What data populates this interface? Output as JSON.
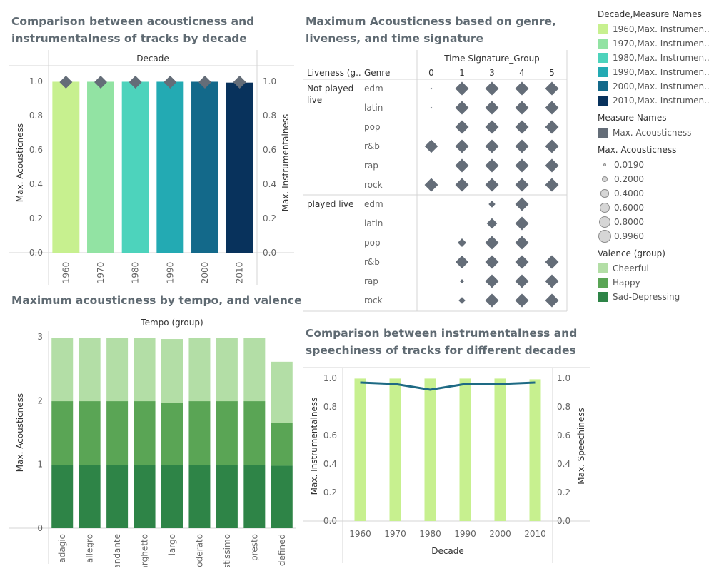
{
  "titles": {
    "chart1_line1": "Comparison between acousticness and",
    "chart1_line2": "instrumentalness of tracks by decade",
    "chart2_line1": "Maximum Acousticness based on genre,",
    "chart2_line2": "liveness, and time signature",
    "chart3": "Maximum acousticness by tempo, and valence",
    "chart4_line1": "Comparison between instrumentalness and",
    "chart4_line2": "speechiness of tracks for different decades"
  },
  "legend": {
    "decade_title": "Decade,Measure Names",
    "decade_items": [
      {
        "label": "1960,Max. Instrumen..",
        "color": "#c7f08f"
      },
      {
        "label": "1970,Max. Instrumen..",
        "color": "#92e3a3"
      },
      {
        "label": "1980,Max. Instrumen..",
        "color": "#4dd3bc"
      },
      {
        "label": "1990,Max. Instrumen..",
        "color": "#23aab3"
      },
      {
        "label": "2000,Max. Instrumen..",
        "color": "#13698a"
      },
      {
        "label": "2010,Max. Instrumen..",
        "color": "#08325c"
      }
    ],
    "measure_title": "Measure Names",
    "measure_items": [
      {
        "label": "Max. Acousticness",
        "color": "#646d78"
      }
    ],
    "size_title": "Max. Acousticness",
    "size_items": [
      "0.0190",
      "0.2000",
      "0.4000",
      "0.6000",
      "0.8000",
      "0.9960"
    ],
    "valence_title": "Valence (group)",
    "valence_items": [
      {
        "label": "Cheerful",
        "color": "#b3dea6"
      },
      {
        "label": "Happy",
        "color": "#5aa555"
      },
      {
        "label": "Sad-Depressing",
        "color": "#2e8447"
      }
    ]
  },
  "chart_data": [
    {
      "type": "bar",
      "title": "Comparison between acousticness and instrumentalness of tracks by decade",
      "header": "Decade",
      "categories": [
        "1960",
        "1970",
        "1980",
        "1990",
        "2000",
        "2010"
      ],
      "colors": [
        "#c7f08f",
        "#92e3a3",
        "#4dd3bc",
        "#23aab3",
        "#13698a",
        "#08325c"
      ],
      "series": [
        {
          "name": "Max. Instrumentalness",
          "values": [
            0.998,
            0.998,
            0.998,
            0.998,
            0.998,
            0.993
          ]
        },
        {
          "name": "Max. Acousticness",
          "mark": "diamond",
          "values": [
            0.996,
            0.996,
            0.996,
            0.996,
            0.996,
            0.996
          ]
        }
      ],
      "ylabel": "Max. Acousticness",
      "y2label": "Max. Instrumentalness",
      "ylim": [
        0,
        1.05
      ],
      "y_ticks": [
        "0.0",
        "0.2",
        "0.4",
        "0.6",
        "0.8",
        "1.0"
      ],
      "marker_color": "#646d78"
    },
    {
      "type": "scatter",
      "title": "Maximum Acousticness based on genre, liveness, and time signature",
      "col_header": "Time Signature_Group",
      "row_header_1": "Liveness (g..",
      "row_header_2": "Genre",
      "columns": [
        "0",
        "1",
        "3",
        "4",
        "5"
      ],
      "groups": [
        {
          "name": "Not played live",
          "name_line1": "Not played",
          "name_line2": "live",
          "genres": [
            "edm",
            "latin",
            "pop",
            "r&b",
            "rap",
            "rock"
          ],
          "values": [
            [
              0.019,
              0.996,
              0.996,
              0.996,
              0.996
            ],
            [
              0.019,
              0.996,
              0.996,
              0.996,
              0.996
            ],
            [
              null,
              0.996,
              0.996,
              0.996,
              0.996
            ],
            [
              0.95,
              0.996,
              0.996,
              0.996,
              0.996
            ],
            [
              null,
              0.996,
              0.996,
              0.996,
              0.996
            ],
            [
              0.99,
              0.996,
              0.996,
              0.996,
              0.996
            ]
          ]
        },
        {
          "name": "played live",
          "genres": [
            "edm",
            "latin",
            "pop",
            "r&b",
            "rap",
            "rock"
          ],
          "values": [
            [
              null,
              null,
              0.25,
              0.99,
              null
            ],
            [
              null,
              null,
              0.6,
              0.99,
              null
            ],
            [
              null,
              0.4,
              0.996,
              0.996,
              null
            ],
            [
              null,
              0.9,
              0.996,
              0.996,
              0.996
            ],
            [
              null,
              0.1,
              0.996,
              0.996,
              0.996
            ],
            [
              null,
              0.25,
              0.996,
              0.996,
              0.996
            ]
          ]
        }
      ],
      "marker_color": "#646d78"
    },
    {
      "type": "bar",
      "stacked": true,
      "title": "Maximum acousticness by tempo, and valence",
      "header": "Tempo (group)",
      "categories": [
        "adagio",
        "allegro",
        "andante",
        "larghetto",
        "largo",
        "moderato",
        "prestissimo",
        "presto",
        "undefined"
      ],
      "series": [
        {
          "name": "Sad-Depressing",
          "color": "#2e8447",
          "values": [
            0.996,
            0.996,
            0.996,
            0.996,
            0.996,
            0.996,
            0.996,
            0.996,
            0.98
          ]
        },
        {
          "name": "Happy",
          "color": "#5aa555",
          "values": [
            0.996,
            0.996,
            0.996,
            0.996,
            0.97,
            0.996,
            0.996,
            0.996,
            0.67
          ]
        },
        {
          "name": "Cheerful",
          "color": "#b3dea6",
          "values": [
            0.996,
            0.996,
            0.996,
            0.996,
            1.0,
            0.996,
            0.996,
            0.996,
            0.96
          ]
        }
      ],
      "ylabel": "Max. Acousticness",
      "ylim": [
        0,
        3
      ],
      "y_ticks": [
        "0",
        "1",
        "2",
        "3"
      ]
    },
    {
      "type": "bar",
      "title": "Comparison between instrumentalness and speechiness of tracks for different decades",
      "categories": [
        "1960",
        "1970",
        "1980",
        "1990",
        "2000",
        "2010"
      ],
      "series": [
        {
          "name": "Max. Instrumentalness",
          "type": "bar",
          "color": "#c7f08f",
          "values": [
            0.998,
            0.998,
            0.998,
            0.998,
            0.998,
            0.993
          ]
        },
        {
          "name": "Max. Speechiness",
          "type": "line",
          "color": "#1e6a84",
          "values": [
            0.97,
            0.96,
            0.92,
            0.96,
            0.96,
            0.97
          ]
        }
      ],
      "xlabel": "Decade",
      "ylabel": "Max. Instrumentalness",
      "y2label": "Max. Speechiness",
      "ylim": [
        0,
        1.05
      ],
      "y_ticks": [
        "0.0",
        "0.2",
        "0.4",
        "0.6",
        "0.8",
        "1.0"
      ]
    }
  ]
}
